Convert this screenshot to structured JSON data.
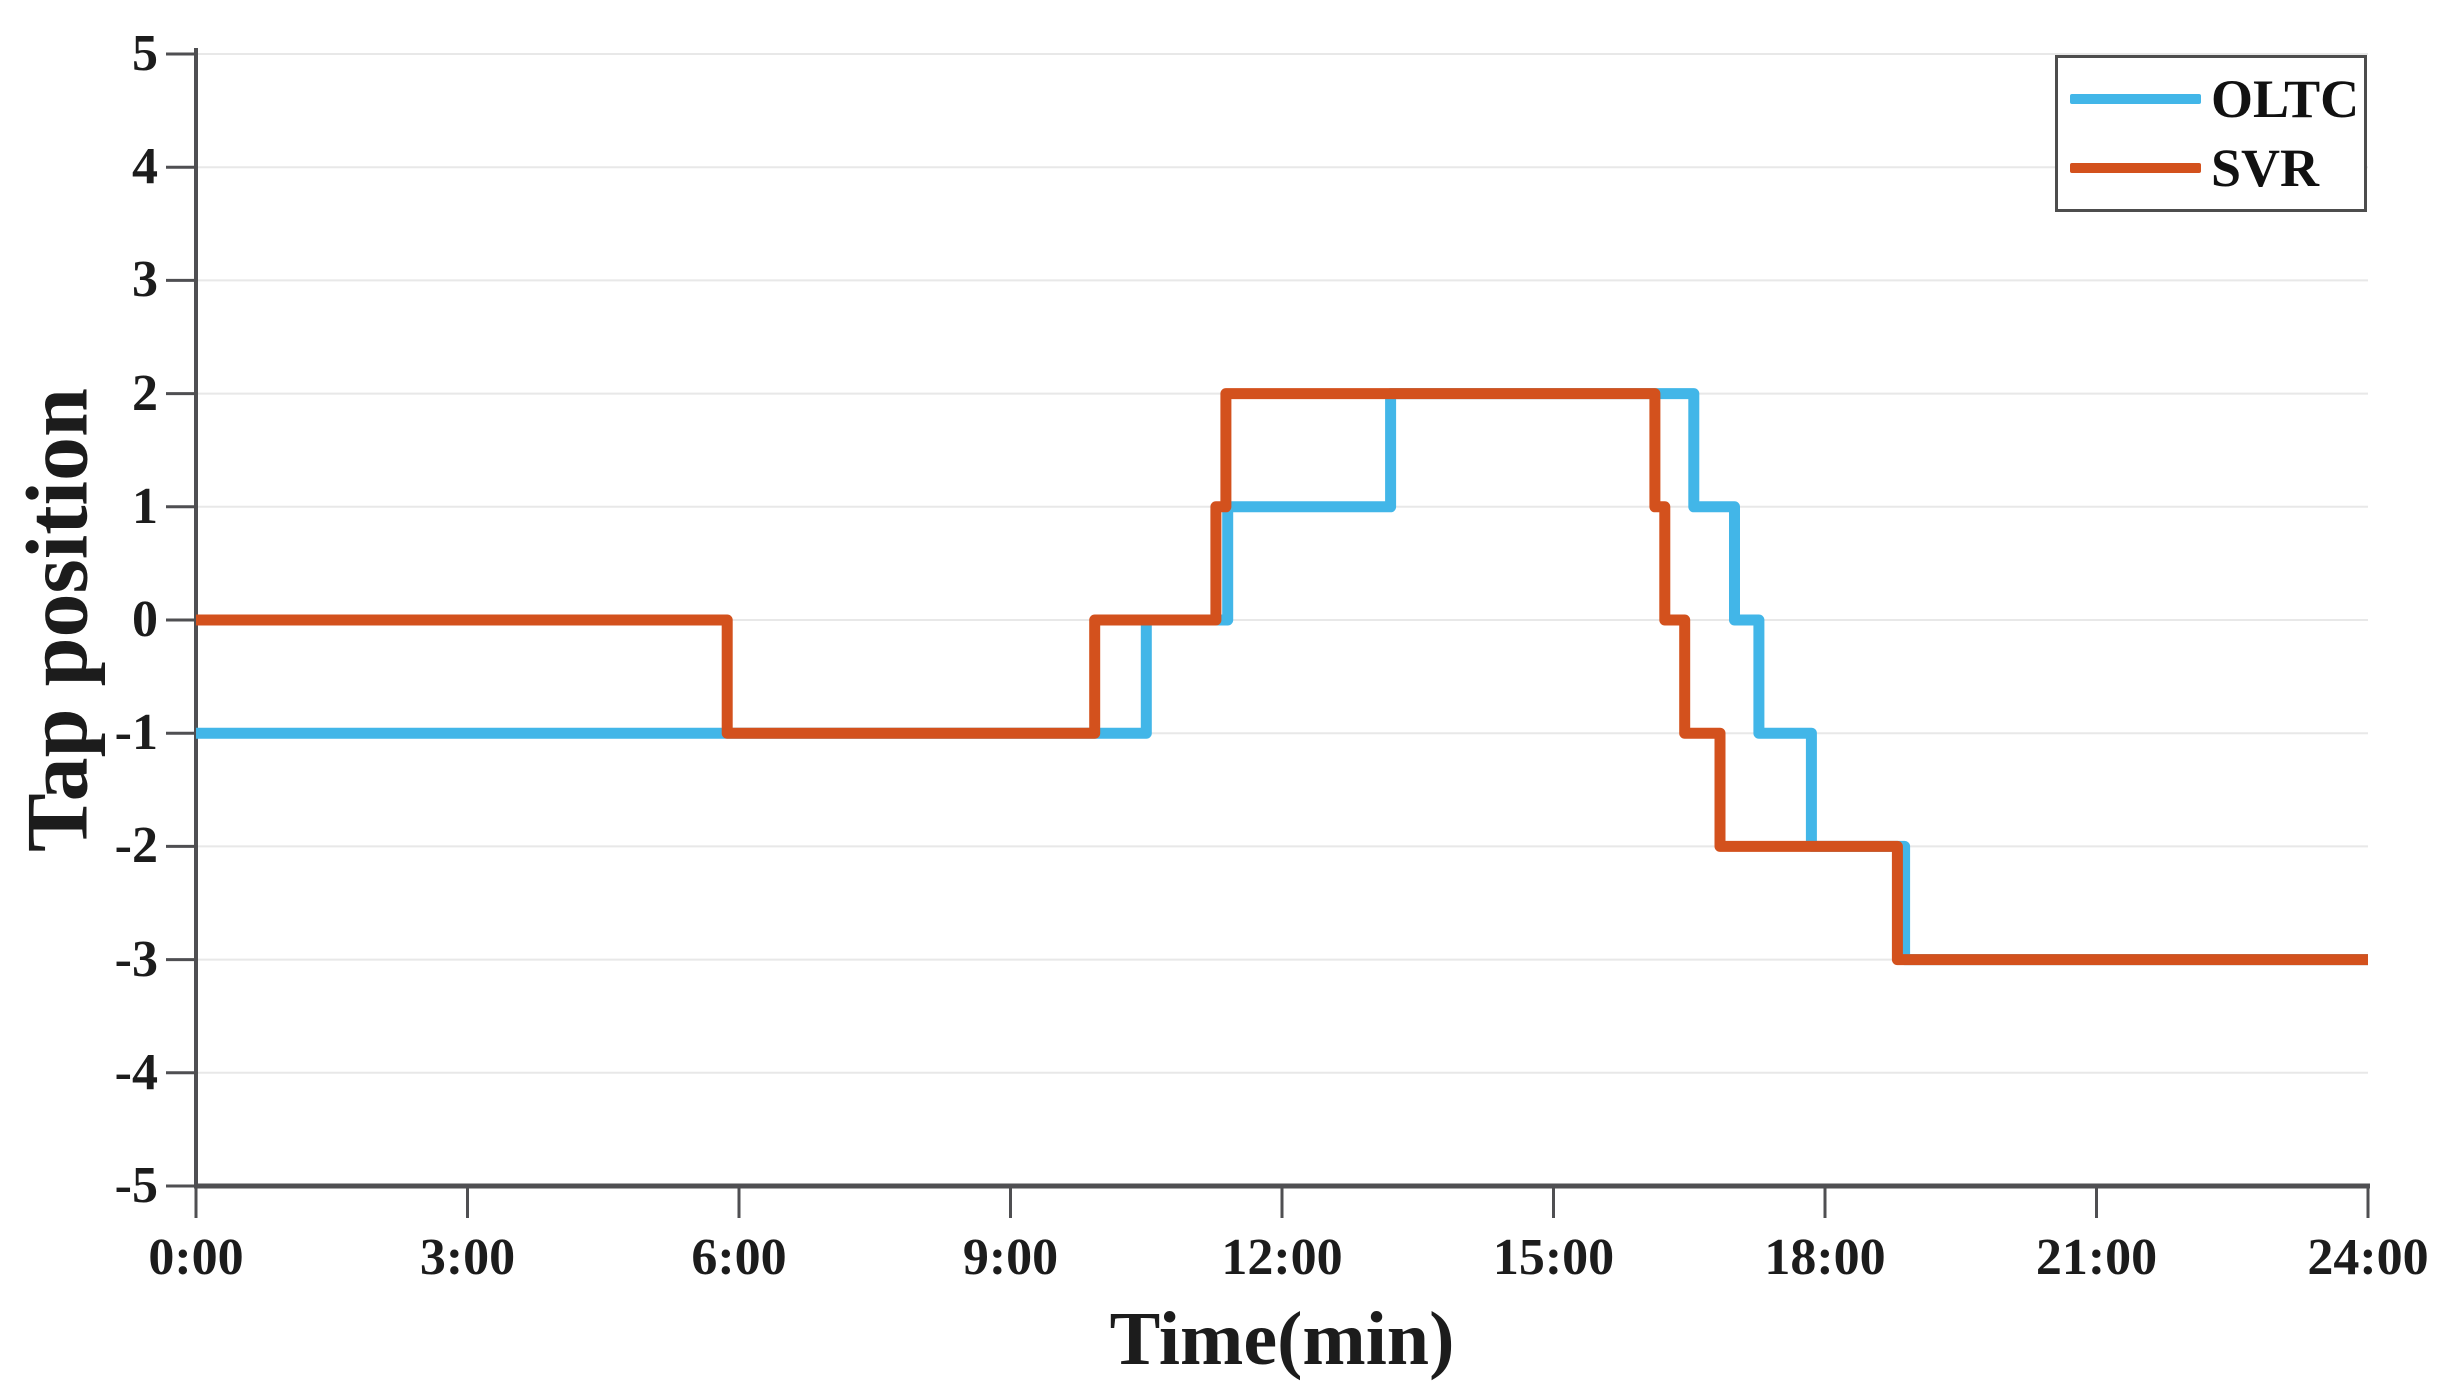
{
  "chart_data": {
    "type": "line",
    "subtype": "step",
    "title": "",
    "xlabel": "Time(min)",
    "ylabel": "Tap position",
    "xlim": [
      0,
      24
    ],
    "ylim": [
      -5,
      5
    ],
    "grid": "horizontal-only",
    "legend_position": "top-right",
    "x_unit": "hours",
    "x_ticks": [
      {
        "v": 0,
        "label": "0:00"
      },
      {
        "v": 3,
        "label": "3:00"
      },
      {
        "v": 6,
        "label": "6:00"
      },
      {
        "v": 9,
        "label": "9:00"
      },
      {
        "v": 12,
        "label": "12:00"
      },
      {
        "v": 15,
        "label": "15:00"
      },
      {
        "v": 18,
        "label": "18:00"
      },
      {
        "v": 21,
        "label": "21:00"
      },
      {
        "v": 24,
        "label": "24:00"
      }
    ],
    "y_ticks": [
      {
        "v": 5,
        "label": "5"
      },
      {
        "v": 4,
        "label": "4"
      },
      {
        "v": 3,
        "label": "3"
      },
      {
        "v": 2,
        "label": "2"
      },
      {
        "v": 1,
        "label": "1"
      },
      {
        "v": 0,
        "label": "0"
      },
      {
        "v": -1,
        "label": "-1"
      },
      {
        "v": -2,
        "label": "-2"
      },
      {
        "v": -3,
        "label": "-3"
      },
      {
        "v": -4,
        "label": "-4"
      },
      {
        "v": -5,
        "label": "-5"
      }
    ],
    "series": [
      {
        "name": "OLTC",
        "color": "#42B6E8",
        "points": [
          [
            0,
            -1
          ],
          [
            10.5,
            -1
          ],
          [
            10.5,
            0
          ],
          [
            11.4,
            0
          ],
          [
            11.4,
            1
          ],
          [
            13.2,
            1
          ],
          [
            13.2,
            2
          ],
          [
            16.55,
            2
          ],
          [
            16.55,
            1
          ],
          [
            17.0,
            1
          ],
          [
            17.0,
            0
          ],
          [
            17.27,
            0
          ],
          [
            17.27,
            -1
          ],
          [
            17.85,
            -1
          ],
          [
            17.85,
            -2
          ],
          [
            18.88,
            -2
          ],
          [
            18.88,
            -3
          ],
          [
            24,
            -3
          ]
        ]
      },
      {
        "name": "SVR",
        "color": "#D3511D",
        "points": [
          [
            0,
            0
          ],
          [
            5.87,
            0
          ],
          [
            5.87,
            -1
          ],
          [
            9.93,
            -1
          ],
          [
            9.93,
            0
          ],
          [
            11.27,
            0
          ],
          [
            11.27,
            1
          ],
          [
            11.38,
            1
          ],
          [
            11.38,
            2
          ],
          [
            16.12,
            2
          ],
          [
            16.12,
            1
          ],
          [
            16.23,
            1
          ],
          [
            16.23,
            0
          ],
          [
            16.45,
            0
          ],
          [
            16.45,
            -1
          ],
          [
            16.84,
            -1
          ],
          [
            16.84,
            -2
          ],
          [
            18.8,
            -2
          ],
          [
            18.8,
            -3
          ],
          [
            24,
            -3
          ]
        ]
      }
    ]
  },
  "styles": {
    "axis_color": "#4f4f52",
    "grid_color": "#e8e8e8",
    "text_color": "#1c1c1c",
    "background": "#ffffff"
  }
}
